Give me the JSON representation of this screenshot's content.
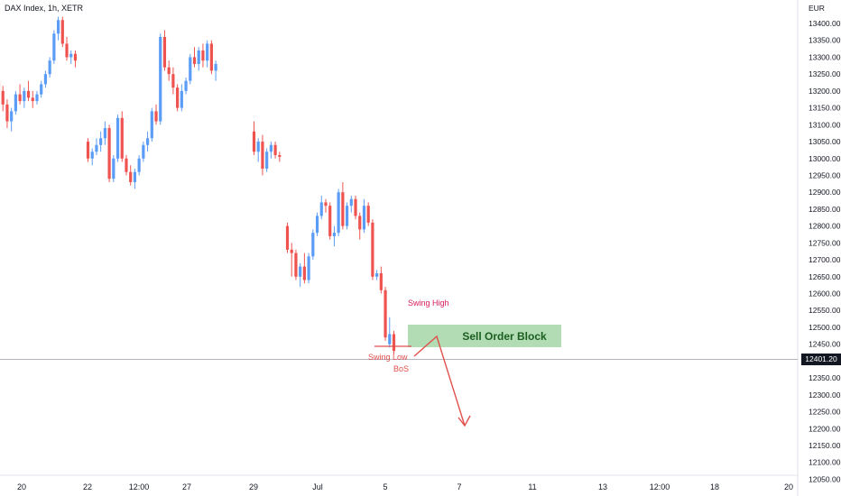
{
  "header": {
    "title": "DAX Index, 1h, XETR"
  },
  "axis": {
    "currency": "EUR",
    "last_price": "12401.20"
  },
  "annotations": {
    "swing_high": "Swing High",
    "swing_low": "Swing Low",
    "bos": "BoS",
    "order_block": "Sell Order Block"
  },
  "colors": {
    "up": "#5b9cf6",
    "down": "#ef5350",
    "order_block": "#a5d6a7",
    "annotation": "#e0504c",
    "swing_high": "#d81b60"
  },
  "chart_data": {
    "type": "candlestick",
    "title": "DAX Index, 1h, XETR",
    "ylim": [
      12040,
      13440
    ],
    "y_ticks": [
      13400,
      13350,
      13300,
      13250,
      13200,
      13150,
      13100,
      13050,
      13000,
      12950,
      12900,
      12850,
      12800,
      12750,
      12700,
      12650,
      12600,
      12550,
      12500,
      12450,
      12400,
      12350,
      12300,
      12250,
      12200,
      12150,
      12100,
      12050
    ],
    "x_ticks": [
      "20",
      "22",
      "12:00",
      "27",
      "29",
      "Jul",
      "5",
      "7",
      "11",
      "13",
      "12:00",
      "18",
      "20"
    ],
    "series": [
      {
        "segment": 1,
        "candles": [
          [
            13230,
            13250,
            13170,
            13200
          ],
          [
            13200,
            13215,
            13140,
            13160
          ],
          [
            13160,
            13175,
            13090,
            13110
          ],
          [
            13110,
            13150,
            13080,
            13140
          ],
          [
            13140,
            13200,
            13130,
            13190
          ],
          [
            13190,
            13220,
            13160,
            13170
          ],
          [
            13170,
            13210,
            13150,
            13200
          ],
          [
            13200,
            13230,
            13170,
            13180
          ],
          [
            13180,
            13200,
            13150,
            13170
          ],
          [
            13170,
            13200,
            13160,
            13190
          ],
          [
            13190,
            13230,
            13180,
            13220
          ],
          [
            13220,
            13260,
            13210,
            13250
          ],
          [
            13250,
            13300,
            13240,
            13290
          ],
          [
            13290,
            13380,
            13280,
            13370
          ],
          [
            13370,
            13420,
            13350,
            13410
          ],
          [
            13410,
            13420,
            13330,
            13340
          ],
          [
            13340,
            13360,
            13290,
            13300
          ],
          [
            13300,
            13320,
            13280,
            13310
          ],
          [
            13310,
            13320,
            13270,
            13290
          ]
        ]
      },
      {
        "segment": 2,
        "candles": [
          [
            13050,
            13060,
            12990,
            13000
          ],
          [
            13000,
            13030,
            12980,
            13020
          ],
          [
            13020,
            13060,
            13010,
            13040
          ],
          [
            13040,
            13080,
            13020,
            13060
          ],
          [
            13060,
            13110,
            13040,
            13090
          ],
          [
            13090,
            13100,
            12930,
            12940
          ],
          [
            12940,
            13010,
            12930,
            13000
          ],
          [
            13000,
            13130,
            12990,
            13120
          ],
          [
            13120,
            13140,
            12990,
            13000
          ],
          [
            13000,
            13010,
            12950,
            12960
          ],
          [
            12960,
            12980,
            12920,
            12930
          ],
          [
            12930,
            12970,
            12910,
            12960
          ],
          [
            12960,
            13010,
            12950,
            13000
          ],
          [
            13000,
            13050,
            12990,
            13040
          ],
          [
            13040,
            13080,
            13020,
            13060
          ],
          [
            13060,
            13150,
            13050,
            13140
          ],
          [
            13140,
            13160,
            13100,
            13110
          ],
          [
            13110,
            13370,
            13100,
            13360
          ],
          [
            13360,
            13380,
            13260,
            13270
          ],
          [
            13270,
            13290,
            13230,
            13250
          ],
          [
            13250,
            13270,
            13190,
            13210
          ],
          [
            13210,
            13220,
            13140,
            13150
          ],
          [
            13150,
            13220,
            13140,
            13200
          ],
          [
            13200,
            13240,
            13190,
            13230
          ],
          [
            13230,
            13310,
            13220,
            13300
          ],
          [
            13300,
            13330,
            13270,
            13280
          ],
          [
            13280,
            13330,
            13260,
            13320
          ],
          [
            13320,
            13340,
            13270,
            13290
          ],
          [
            13290,
            13350,
            13270,
            13340
          ],
          [
            13340,
            13350,
            13250,
            13260
          ],
          [
            13260,
            13290,
            13230,
            13280
          ]
        ]
      },
      {
        "segment": 3,
        "candles": [
          [
            13080,
            13110,
            13010,
            13020
          ],
          [
            13020,
            13060,
            12990,
            13050
          ],
          [
            13050,
            13070,
            12950,
            12970
          ],
          [
            12970,
            13030,
            12960,
            13020
          ],
          [
            13020,
            13050,
            13000,
            13040
          ],
          [
            13040,
            13050,
            13000,
            13010
          ],
          [
            13010,
            13020,
            12990,
            13005
          ]
        ]
      },
      {
        "segment": 4,
        "candles": [
          [
            12800,
            12810,
            12720,
            12730
          ],
          [
            12730,
            12750,
            12650,
            12720
          ],
          [
            12720,
            12730,
            12640,
            12650
          ],
          [
            12650,
            12690,
            12620,
            12680
          ],
          [
            12680,
            12720,
            12630,
            12640
          ],
          [
            12640,
            12720,
            12630,
            12710
          ],
          [
            12710,
            12790,
            12700,
            12780
          ],
          [
            12780,
            12840,
            12770,
            12830
          ],
          [
            12830,
            12890,
            12820,
            12870
          ],
          [
            12870,
            12880,
            12840,
            12860
          ],
          [
            12860,
            12870,
            12760,
            12770
          ],
          [
            12770,
            12800,
            12740,
            12780
          ],
          [
            12780,
            12910,
            12770,
            12900
          ],
          [
            12900,
            12930,
            12790,
            12800
          ],
          [
            12800,
            12870,
            12790,
            12860
          ],
          [
            12860,
            12890,
            12840,
            12880
          ],
          [
            12880,
            12890,
            12820,
            12830
          ],
          [
            12830,
            12840,
            12760,
            12790
          ],
          [
            12790,
            12880,
            12780,
            12860
          ],
          [
            12860,
            12870,
            12800,
            12810
          ],
          [
            12810,
            12820,
            12640,
            12650
          ],
          [
            12650,
            12670,
            12640,
            12660
          ],
          [
            12660,
            12680,
            12600,
            12610
          ],
          [
            12610,
            12620,
            12460,
            12470
          ],
          [
            12450,
            12530,
            12440,
            12480
          ],
          [
            12480,
            12490,
            12420,
            12430
          ]
        ]
      }
    ],
    "levels": [
      {
        "label": "Swing Low",
        "value": 12435
      }
    ],
    "zones": [
      {
        "label": "Sell Order Block",
        "from": 12435,
        "to": 12505
      }
    ],
    "current_price": 12401.2,
    "grid": false,
    "legend": "none"
  }
}
